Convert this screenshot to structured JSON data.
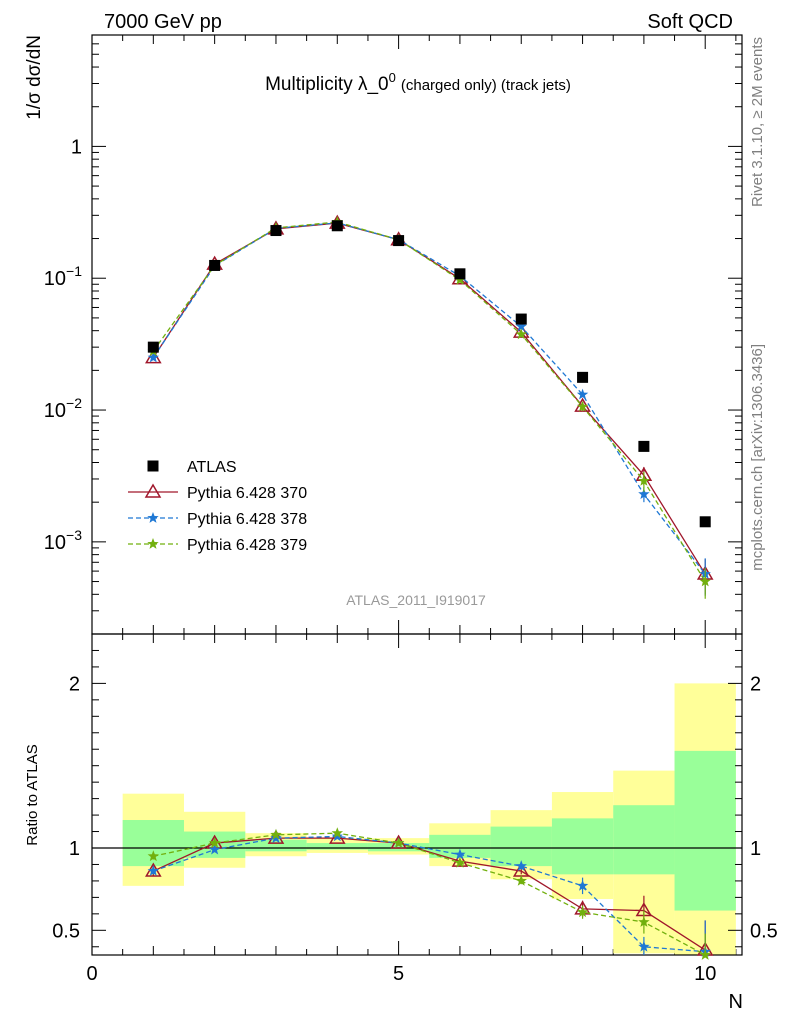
{
  "header": {
    "left": "7000 GeV pp",
    "right": "Soft QCD"
  },
  "side": {
    "rivet": "Rivet 3.1.10, ≥ 2M events",
    "mcplots": "mcplots.cern.ch [arXiv:1306.3436]"
  },
  "chart_data": [
    {
      "type": "scatter",
      "title": "Multiplicity λ_0",
      "title_superscript": "0",
      "title_suffix": "(charged only) (track jets)",
      "ylabel": "1/σ dσ/dN",
      "xlim": [
        0,
        10.6
      ],
      "ylim": [
        0.0002,
        7
      ],
      "log_y": true,
      "y_tick_labels": [
        {
          "value": 1,
          "mantissa": "1",
          "exponent": ""
        },
        {
          "value": 0.1,
          "mantissa": "10",
          "exponent": "−1"
        },
        {
          "value": 0.01,
          "mantissa": "10",
          "exponent": "−2"
        },
        {
          "value": 0.001,
          "mantissa": "10",
          "exponent": "−3"
        }
      ],
      "watermark": "ATLAS_2011_I919017",
      "legend_position": "bottom-left",
      "x": [
        1,
        2,
        3,
        4,
        5,
        6,
        7,
        8,
        9,
        10
      ],
      "series": [
        {
          "name": "ATLAS",
          "color": "#000000",
          "marker": "square",
          "values": [
            0.03,
            0.125,
            0.23,
            0.25,
            0.193,
            0.108,
            0.049,
            0.0177,
            0.0053,
            0.00142
          ]
        },
        {
          "name": "Pythia 6.428 370",
          "color": "#a0172b",
          "marker": "open-triangle",
          "line": "solid",
          "values": [
            0.025,
            0.128,
            0.237,
            0.262,
            0.196,
            0.099,
            0.039,
            0.0107,
            0.0032,
            0.00057
          ],
          "errors": [
            0,
            0,
            0,
            0,
            0,
            0,
            0,
            0.0008,
            0.0005,
            0.00017
          ]
        },
        {
          "name": "Pythia 6.428 378",
          "color": "#1f78d4",
          "marker": "star",
          "line": "dashed",
          "values": [
            0.025,
            0.124,
            0.239,
            0.263,
            0.196,
            0.104,
            0.043,
            0.0131,
            0.0023,
            0.00057
          ],
          "errors": [
            0,
            0,
            0,
            0,
            0,
            0,
            0,
            0.0005,
            0.0003,
            0.00018
          ]
        },
        {
          "name": "Pythia 6.428 379",
          "color": "#72b00e",
          "marker": "star",
          "line": "dashed",
          "values": [
            0.028,
            0.125,
            0.241,
            0.267,
            0.196,
            0.097,
            0.0375,
            0.0106,
            0.0029,
            0.0005
          ],
          "errors": [
            0,
            0,
            0,
            0,
            0,
            0,
            0,
            0.0008,
            0.0005,
            0.00013
          ]
        }
      ]
    },
    {
      "type": "scatter",
      "ylabel": "Ratio to ATLAS",
      "xlabel": "N",
      "xlim": [
        0,
        10.6
      ],
      "ylim": [
        0.35,
        2.3
      ],
      "x_ticks": [
        0,
        5,
        10
      ],
      "y_ticks": [
        0.5,
        1,
        2
      ],
      "x": [
        1,
        2,
        3,
        4,
        5,
        6,
        7,
        8,
        9,
        10
      ],
      "bands": {
        "yellow": [
          [
            0.77,
            1.33
          ],
          [
            0.88,
            1.22
          ],
          [
            0.95,
            1.09
          ],
          [
            0.97,
            1.06
          ],
          [
            0.96,
            1.06
          ],
          [
            0.89,
            1.15
          ],
          [
            0.81,
            1.23
          ],
          [
            0.69,
            1.34
          ],
          [
            0.36,
            1.47
          ],
          [
            0.0,
            2.0
          ]
        ],
        "green": [
          [
            0.89,
            1.17
          ],
          [
            0.94,
            1.1
          ],
          [
            0.98,
            1.05
          ],
          [
            0.99,
            1.03
          ],
          [
            0.98,
            1.03
          ],
          [
            0.94,
            1.08
          ],
          [
            0.89,
            1.13
          ],
          [
            0.84,
            1.18
          ],
          [
            0.84,
            1.26
          ],
          [
            0.62,
            1.59
          ]
        ]
      },
      "series": [
        {
          "name": "Pythia 6.428 370",
          "color": "#a0172b",
          "marker": "open-triangle",
          "line": "solid",
          "values": [
            0.86,
            1.03,
            1.06,
            1.06,
            1.03,
            0.92,
            0.86,
            0.63,
            0.62,
            0.38
          ],
          "errors": [
            0.03,
            0,
            0,
            0,
            0,
            0,
            0.02,
            0.05,
            0.09,
            0.18
          ]
        },
        {
          "name": "Pythia 6.428 378",
          "color": "#1f78d4",
          "marker": "star",
          "line": "dashed",
          "values": [
            0.86,
            0.99,
            1.06,
            1.07,
            1.03,
            0.96,
            0.89,
            0.77,
            0.4,
            0.37
          ],
          "errors": [
            0.02,
            0,
            0,
            0,
            0,
            0,
            0.02,
            0.05,
            0.06,
            0.19
          ]
        },
        {
          "name": "Pythia 6.428 379",
          "color": "#72b00e",
          "marker": "star",
          "line": "dashed",
          "values": [
            0.95,
            1.03,
            1.08,
            1.09,
            1.03,
            0.91,
            0.8,
            0.61,
            0.55,
            0.35
          ],
          "errors": [
            0.02,
            0,
            0,
            0,
            0,
            0,
            0.02,
            0.04,
            0.07,
            0.13
          ]
        }
      ]
    }
  ]
}
